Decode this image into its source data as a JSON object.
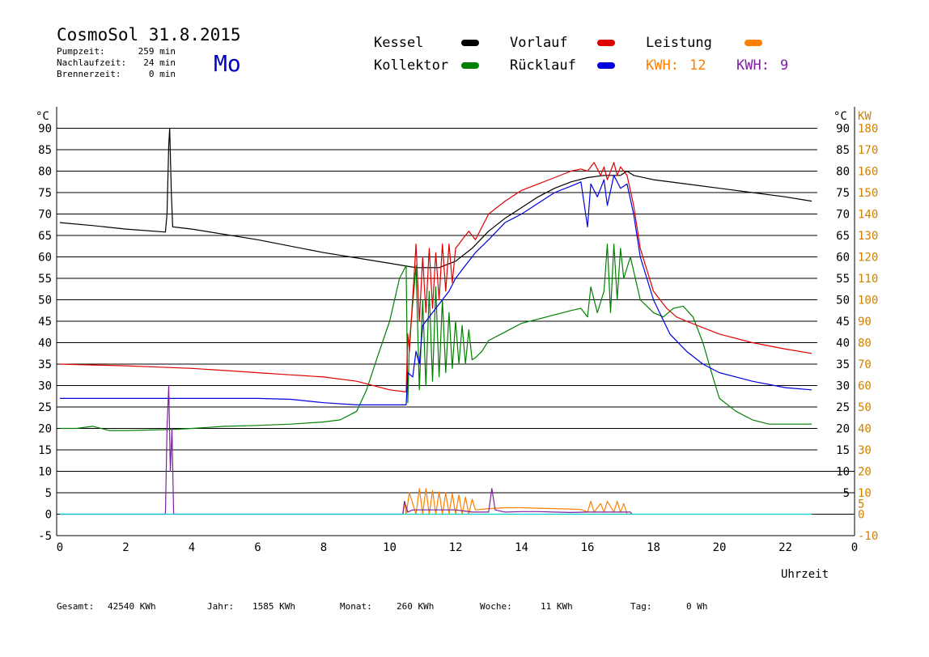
{
  "header": {
    "title": "CosmoSol 31.8.2015",
    "weekday": "Mo",
    "stats": [
      {
        "label": "Pumpzeit:",
        "value": "259 min"
      },
      {
        "label": "Nachlaufzeit:",
        "value": "24 min"
      },
      {
        "label": "Brennerzeit:",
        "value": "0 min"
      }
    ]
  },
  "legend": {
    "kessel": {
      "label": "Kessel",
      "color": "#000000"
    },
    "vorlauf": {
      "label": "Vorlauf",
      "color": "#e00000"
    },
    "leistung": {
      "label": "Leistung",
      "color": "#ff8000"
    },
    "kollektor": {
      "label": "Kollektor",
      "color": "#008000"
    },
    "ruecklauf": {
      "label": "Rücklauf",
      "color": "#0000e0"
    },
    "kwh1": {
      "label": "KWH:",
      "value": "12",
      "color": "#ff8000"
    },
    "kwh2": {
      "label": "KWH:",
      "value": "9",
      "color": "#8020a0"
    }
  },
  "footer": [
    {
      "label": "Gesamt:",
      "value": "42540 KWh"
    },
    {
      "label": "Jahr:",
      "value": "1585 KWh"
    },
    {
      "label": "Monat:",
      "value": "260 KWh"
    },
    {
      "label": "Woche:",
      "value": "11 KWh"
    },
    {
      "label": "Tag:",
      "value": "0 Wh"
    }
  ],
  "chart_data": {
    "type": "line",
    "xlabel": "Uhrzeit",
    "ylabel_left": "°C",
    "ylabel_right": "KW",
    "xlim": [
      0,
      24
    ],
    "ylim": [
      -5,
      95
    ],
    "ylim_right": [
      -10,
      190
    ],
    "x_ticks": [
      0,
      2,
      4,
      6,
      8,
      10,
      12,
      14,
      16,
      18,
      20,
      22
    ],
    "y_ticks": [
      -5,
      0,
      5,
      10,
      15,
      20,
      25,
      30,
      35,
      40,
      45,
      50,
      55,
      60,
      65,
      70,
      75,
      80,
      85,
      90
    ],
    "y_ticks_right": [
      -10,
      0,
      5,
      10,
      20,
      30,
      40,
      50,
      60,
      70,
      80,
      90,
      100,
      110,
      120,
      130,
      140,
      150,
      160,
      170,
      180
    ],
    "series": [
      {
        "name": "Kessel",
        "color": "#000000",
        "x": [
          0,
          1,
          2,
          3.2,
          3.25,
          3.3,
          3.33,
          3.38,
          3.42,
          4,
          6,
          8,
          10,
          10.8,
          11.5,
          12,
          12.5,
          13,
          13.5,
          14,
          14.5,
          15,
          15.5,
          16,
          16.5,
          17,
          17.2,
          17.4,
          18,
          19,
          20,
          21,
          22,
          22.8
        ],
        "y": [
          68,
          67.3,
          66.5,
          65.8,
          70,
          86,
          90,
          75,
          67,
          66.5,
          64,
          61,
          58.5,
          57.5,
          57.5,
          59,
          62,
          66,
          69,
          71.5,
          74,
          76,
          77.5,
          78.5,
          79,
          79,
          80,
          79,
          78,
          77,
          76,
          75,
          74,
          73
        ]
      },
      {
        "name": "Kollektor",
        "color": "#008000",
        "x": [
          0,
          0.5,
          1,
          1.5,
          2,
          3,
          3.5,
          4,
          5,
          6,
          7,
          8,
          8.5,
          9,
          9.3,
          9.6,
          10,
          10.3,
          10.5,
          10.55,
          10.6,
          10.8,
          10.9,
          11.0,
          11.1,
          11.2,
          11.3,
          11.4,
          11.5,
          11.6,
          11.7,
          11.8,
          11.9,
          12.0,
          12.1,
          12.2,
          12.3,
          12.4,
          12.5,
          12.6,
          12.8,
          13,
          13.5,
          14,
          14.5,
          15,
          15.5,
          15.8,
          16,
          16.1,
          16.3,
          16.5,
          16.6,
          16.7,
          16.8,
          16.9,
          17.0,
          17.1,
          17.3,
          17.6,
          18,
          18.3,
          18.6,
          18.9,
          19.2,
          19.5,
          19.8,
          20,
          20.5,
          21,
          21.5,
          22,
          22.8
        ],
        "y": [
          20,
          20,
          20.5,
          19.5,
          19.5,
          19.7,
          19.8,
          20,
          20.5,
          20.7,
          21,
          21.5,
          22,
          24,
          29,
          36,
          45,
          55,
          58,
          26,
          40,
          58,
          29,
          50,
          30,
          52,
          31,
          53,
          32,
          50,
          33,
          47,
          34,
          45,
          35,
          44,
          35,
          43,
          36,
          36.5,
          38,
          40.5,
          42.5,
          44.5,
          45.5,
          46.5,
          47.5,
          48,
          46,
          53,
          47,
          52,
          63,
          47,
          63,
          50,
          62,
          55,
          60,
          50,
          47,
          46,
          48,
          48.5,
          46,
          40,
          32,
          27,
          24,
          22,
          21,
          21,
          21
        ]
      },
      {
        "name": "Vorlauf",
        "color": "#e00000",
        "x": [
          0,
          1,
          2,
          3,
          4,
          5,
          6,
          7,
          8,
          9,
          10,
          10.5,
          10.55,
          10.6,
          10.8,
          10.9,
          11,
          11.1,
          11.2,
          11.3,
          11.4,
          11.5,
          11.6,
          11.7,
          11.8,
          11.9,
          12,
          12.2,
          12.4,
          12.6,
          13,
          13.5,
          14,
          14.5,
          15,
          15.5,
          15.8,
          16,
          16.2,
          16.4,
          16.5,
          16.6,
          16.8,
          16.9,
          17.0,
          17.2,
          17.4,
          17.6,
          18,
          18.4,
          18.7,
          19,
          19.5,
          20,
          21,
          22,
          22.8
        ],
        "y": [
          35,
          34.8,
          34.6,
          34.3,
          34,
          33.5,
          33,
          32.5,
          32,
          31,
          29,
          28.5,
          42,
          38,
          63,
          45,
          60,
          47,
          62,
          48,
          61,
          50,
          63,
          52,
          63,
          54,
          62,
          64,
          66,
          64,
          70,
          73,
          75.5,
          77,
          78.5,
          80,
          80.5,
          80,
          82,
          79,
          81,
          78,
          82,
          79,
          81,
          79,
          72,
          62,
          52,
          48,
          46,
          45,
          43.5,
          42,
          40,
          38.5,
          37.5
        ]
      },
      {
        "name": "Rücklauf",
        "color": "#0000e0",
        "x": [
          0,
          1,
          2,
          3,
          4,
          5,
          6,
          7,
          8,
          9,
          10,
          10.5,
          10.55,
          10.7,
          10.8,
          10.9,
          11,
          11.2,
          11.4,
          11.6,
          11.8,
          12,
          12.2,
          12.4,
          12.6,
          13,
          13.5,
          14,
          14.5,
          15,
          15.5,
          15.8,
          16,
          16.1,
          16.3,
          16.5,
          16.6,
          16.8,
          17.0,
          17.2,
          17.4,
          17.6,
          18,
          18.5,
          19,
          19.5,
          20,
          21,
          22,
          22.8
        ],
        "y": [
          27,
          27,
          27,
          27,
          27,
          27,
          27,
          26.8,
          26,
          25.5,
          25.5,
          25.5,
          33,
          32,
          38,
          35,
          44,
          46,
          48,
          50,
          52,
          55,
          57,
          59,
          61,
          64,
          68,
          70,
          72.5,
          75,
          76.5,
          77.5,
          67,
          77,
          74,
          78,
          72,
          79,
          76,
          77,
          70,
          60,
          50,
          42,
          38,
          35,
          33,
          31,
          29.5,
          29
        ]
      },
      {
        "name": "Leistung",
        "color": "#ff8000",
        "x": [
          10.4,
          10.45,
          10.5,
          10.6,
          10.8,
          10.9,
          11.0,
          11.1,
          11.2,
          11.3,
          11.4,
          11.5,
          11.6,
          11.7,
          11.8,
          11.9,
          12.0,
          12.1,
          12.2,
          12.3,
          12.4,
          12.5,
          12.6,
          13,
          13.5,
          14,
          14.5,
          15,
          15.5,
          15.8,
          16,
          16.1,
          16.2,
          16.4,
          16.5,
          16.6,
          16.8,
          16.9,
          17.0,
          17.1,
          17.2
        ],
        "y": [
          0,
          3,
          0,
          5,
          0,
          6,
          0,
          6,
          0,
          5.5,
          0,
          5.2,
          0,
          5,
          0,
          4.8,
          0,
          4.5,
          0,
          4,
          0,
          3.5,
          1,
          1.3,
          1.5,
          1.5,
          1.4,
          1.3,
          1.2,
          1.1,
          0.5,
          3,
          0.5,
          2.5,
          0.5,
          3,
          0.5,
          3,
          0.5,
          2.5,
          0
        ]
      },
      {
        "name": "Pumpe",
        "color": "#8020a0",
        "x": [
          0,
          3.2,
          3.25,
          3.3,
          3.35,
          3.4,
          3.45,
          10.4,
          10.45,
          10.55,
          10.7,
          11,
          12,
          12.5,
          13,
          13.1,
          13.2,
          13.5,
          14,
          14.5,
          15,
          15.5,
          16,
          16.5,
          17,
          17.3,
          17.35
        ],
        "y": [
          0,
          0,
          20,
          30,
          10,
          20,
          0,
          0,
          3,
          0.5,
          1,
          1,
          1,
          0.5,
          0.5,
          6,
          1,
          0.5,
          0.6,
          0.6,
          0.5,
          0.4,
          0.5,
          0.5,
          0.5,
          0.5,
          0
        ]
      },
      {
        "name": "Nulllinie",
        "color": "#00d0d0",
        "x": [
          0,
          22.8
        ],
        "y": [
          0,
          0
        ]
      }
    ]
  }
}
